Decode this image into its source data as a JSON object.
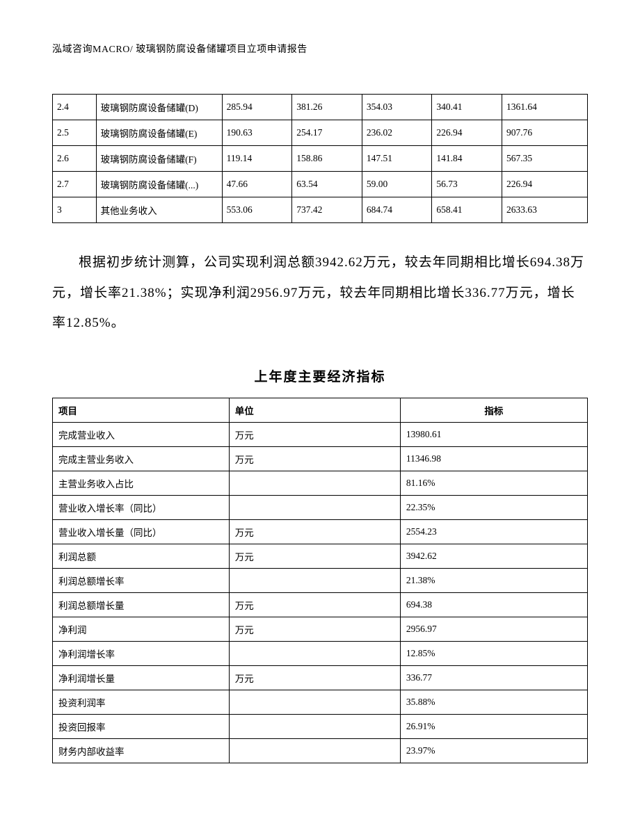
{
  "header": {
    "text": "泓域咨询MACRO/    玻璃钢防腐设备储罐项目立项申请报告"
  },
  "table1": {
    "type": "table",
    "columns": [
      "idx",
      "name",
      "v1",
      "v2",
      "v3",
      "v4",
      "v5"
    ],
    "rows": [
      {
        "idx": "2.4",
        "name": "玻璃钢防腐设备储罐(D)",
        "v1": "285.94",
        "v2": "381.26",
        "v3": "354.03",
        "v4": "340.41",
        "v5": "1361.64"
      },
      {
        "idx": "2.5",
        "name": "玻璃钢防腐设备储罐(E)",
        "v1": "190.63",
        "v2": "254.17",
        "v3": "236.02",
        "v4": "226.94",
        "v5": "907.76"
      },
      {
        "idx": "2.6",
        "name": "玻璃钢防腐设备储罐(F)",
        "v1": "119.14",
        "v2": "158.86",
        "v3": "147.51",
        "v4": "141.84",
        "v5": "567.35"
      },
      {
        "idx": "2.7",
        "name": "玻璃钢防腐设备储罐(...)",
        "v1": "47.66",
        "v2": "63.54",
        "v3": "59.00",
        "v4": "56.73",
        "v5": "226.94"
      },
      {
        "idx": "3",
        "name": "其他业务收入",
        "v1": "553.06",
        "v2": "737.42",
        "v3": "684.74",
        "v4": "658.41",
        "v5": "2633.63"
      }
    ]
  },
  "paragraph": {
    "text": "根据初步统计测算，公司实现利润总额3942.62万元，较去年同期相比增长694.38万元，增长率21.38%；实现净利润2956.97万元，较去年同期相比增长336.77万元，增长率12.85%。"
  },
  "section_title": "上年度主要经济指标",
  "table2": {
    "type": "table",
    "headers": {
      "item": "项目",
      "unit": "单位",
      "value": "指标"
    },
    "rows": [
      {
        "item": "完成营业收入",
        "unit": "万元",
        "value": "13980.61"
      },
      {
        "item": "完成主营业务收入",
        "unit": "万元",
        "value": "11346.98"
      },
      {
        "item": "主营业务收入占比",
        "unit": "",
        "value": "81.16%"
      },
      {
        "item": "营业收入增长率（同比）",
        "unit": "",
        "value": "22.35%"
      },
      {
        "item": "营业收入增长量（同比）",
        "unit": "万元",
        "value": "2554.23"
      },
      {
        "item": "利润总额",
        "unit": "万元",
        "value": "3942.62"
      },
      {
        "item": "利润总额增长率",
        "unit": "",
        "value": "21.38%"
      },
      {
        "item": "利润总额增长量",
        "unit": "万元",
        "value": "694.38"
      },
      {
        "item": "净利润",
        "unit": "万元",
        "value": "2956.97"
      },
      {
        "item": "净利润增长率",
        "unit": "",
        "value": "12.85%"
      },
      {
        "item": "净利润增长量",
        "unit": "万元",
        "value": "336.77"
      },
      {
        "item": "投资利润率",
        "unit": "",
        "value": "35.88%"
      },
      {
        "item": "投资回报率",
        "unit": "",
        "value": "26.91%"
      },
      {
        "item": "财务内部收益率",
        "unit": "",
        "value": "23.97%"
      }
    ]
  }
}
